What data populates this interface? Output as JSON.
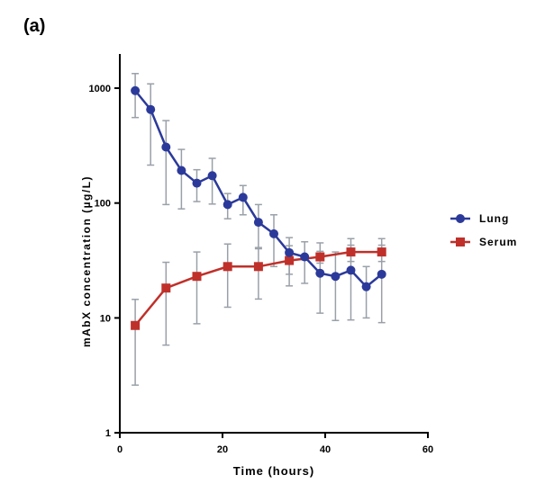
{
  "panel_label": "(a)",
  "chart_data": {
    "type": "line",
    "title": "",
    "xlabel": "Time (hours)",
    "ylabel": "mAbX concentration (µg/L)",
    "xlim": [
      0,
      60
    ],
    "ylim": [
      1,
      2000
    ],
    "yscale": "log",
    "xticks": [
      0,
      20,
      40,
      60
    ],
    "yticks": [
      1,
      10,
      100,
      1000
    ],
    "grid": false,
    "legend_position": "right",
    "series": [
      {
        "name": "Lung",
        "color": "#2b3a9a",
        "marker": "circle",
        "x": [
          3,
          6,
          9,
          12,
          15,
          18,
          21,
          24,
          27,
          30,
          33,
          36,
          39,
          42,
          45,
          48,
          51
        ],
        "y": [
          952,
          652,
          307,
          192,
          149,
          173,
          97,
          112,
          68,
          54,
          37,
          34,
          24.5,
          23,
          26,
          18.7,
          24
        ],
        "err_upper": [
          1340,
          1090,
          522,
          293,
          195,
          245,
          121,
          142,
          97,
          79,
          50,
          46,
          45,
          37.5,
          49,
          28,
          49
        ],
        "err_lower": [
          555,
          214,
          97,
          89,
          103,
          98,
          73,
          79,
          41,
          28,
          19,
          20,
          11,
          9.5,
          9.6,
          10,
          9.1
        ]
      },
      {
        "name": "Serum",
        "color": "#c0302a",
        "marker": "square",
        "x": [
          3,
          9,
          15,
          21,
          27,
          33,
          39,
          45,
          51
        ],
        "y": [
          8.6,
          18.2,
          23,
          28,
          28,
          31.6,
          34,
          37.5,
          37.5
        ],
        "err_upper": [
          14.5,
          30.5,
          37.5,
          44,
          40,
          42.5,
          38,
          43,
          43
        ],
        "err_lower": [
          2.6,
          5.8,
          8.9,
          12.4,
          14.6,
          24,
          30,
          31,
          31
        ]
      }
    ]
  }
}
